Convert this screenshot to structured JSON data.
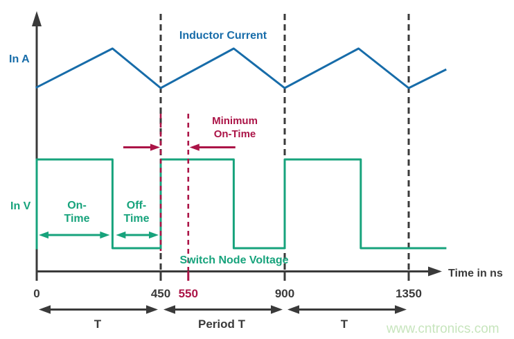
{
  "figure": {
    "description": "Switching regulator minimum on-time timing diagram",
    "watermark": "www.cntronics.com"
  },
  "colors": {
    "current": "#176CA9",
    "voltage": "#17A37C",
    "accent": "#AB1447",
    "axis": "#3A3A3A",
    "watermark": "#C7E5BD"
  },
  "labels": {
    "y_top": "In A",
    "y_bottom": "In V",
    "curve_current": "Inductor Current",
    "curve_voltage": "Switch Node Voltage",
    "min_on_time_line1": "Minimum",
    "min_on_time_line2": "On-Time",
    "on_time_line1": "On-",
    "on_time_line2": "Time",
    "off_time_line1": "Off-",
    "off_time_line2": "Time",
    "t_left": "T",
    "period_t": "Period T",
    "t_right": "T",
    "x_axis": "Time in ns"
  },
  "chart_data": {
    "type": "line",
    "xlabel": "Time in ns",
    "x_range_ns": [
      0,
      1483
    ],
    "grid": false,
    "x_ticks": [
      {
        "t": 0,
        "label": "0",
        "color": "dark"
      },
      {
        "t": 450,
        "label": "450",
        "color": "dark"
      },
      {
        "t": 550,
        "label": "550",
        "color": "accent"
      },
      {
        "t": 900,
        "label": "900",
        "color": "dark"
      },
      {
        "t": 1350,
        "label": "1350",
        "color": "dark"
      }
    ],
    "period_markers_ns": [
      450,
      900,
      1350
    ],
    "min_on_time_markers_ns": [
      450,
      550
    ],
    "series": [
      {
        "name": "Inductor Current",
        "units": "A",
        "color": "#176CA9",
        "shape": "triangle-ripple",
        "points": [
          [
            0,
            0.02
          ],
          [
            275,
            1
          ],
          [
            450,
            0
          ],
          [
            715,
            1
          ],
          [
            900,
            0
          ],
          [
            1168,
            1
          ],
          [
            1350,
            0
          ],
          [
            1483,
            0.46
          ]
        ]
      },
      {
        "name": "Switch Node Voltage",
        "units": "V",
        "color": "#17A37C",
        "shape": "square-wave",
        "points": [
          [
            0,
            0
          ],
          [
            0,
            1
          ],
          [
            275,
            1
          ],
          [
            275,
            0
          ],
          [
            450,
            0
          ],
          [
            450,
            1
          ],
          [
            715,
            1
          ],
          [
            715,
            0
          ],
          [
            900,
            0
          ],
          [
            900,
            1
          ],
          [
            1176,
            1
          ],
          [
            1176,
            0
          ],
          [
            1483,
            0
          ]
        ]
      }
    ],
    "intervals": [
      {
        "label": "On-Time",
        "from": 0,
        "to": 275
      },
      {
        "label": "Off-Time",
        "from": 275,
        "to": 450
      },
      {
        "label": "Minimum On-Time",
        "from": 450,
        "to": 550
      },
      {
        "label": "T",
        "from": 0,
        "to": 450
      },
      {
        "label": "Period T",
        "from": 450,
        "to": 900
      },
      {
        "label": "T",
        "from": 900,
        "to": 1350
      }
    ]
  }
}
